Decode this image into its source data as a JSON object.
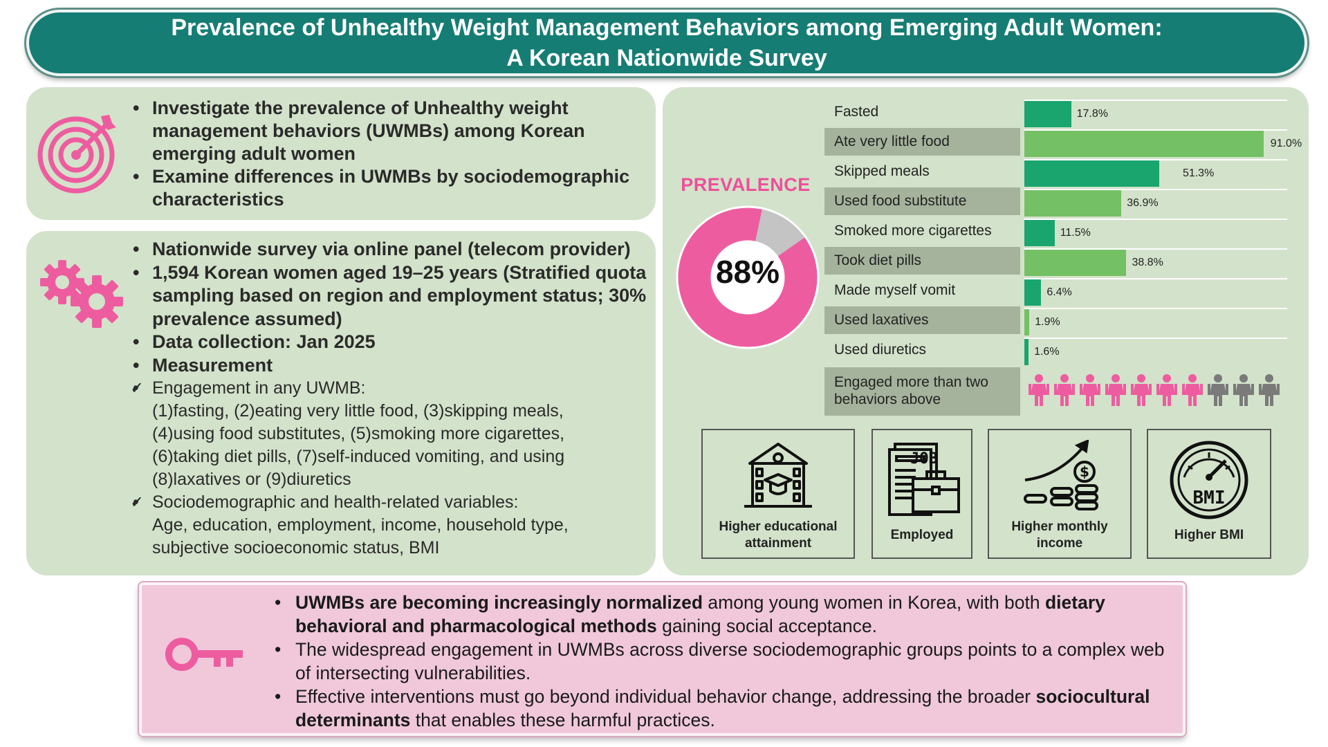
{
  "header": {
    "title_line1": "Prevalence of Unhealthy Weight Management Behaviors among Emerging Adult Women:",
    "title_line2": "A Korean Nationwide Survey"
  },
  "objectives": {
    "icon": "target-icon",
    "items": [
      "Investigate the prevalence of Unhealthy weight management behaviors (UWMBs) among Korean emerging adult women",
      "Examine differences in UWMBs by sociodemographic characteristics"
    ]
  },
  "methods": {
    "icon": "gears-icon",
    "items": [
      "Nationwide survey via online panel (telecom provider)",
      "1,594 Korean women aged 19–25 years (Stratified quota sampling based on region and employment status; 30% prevalence assumed)",
      "Data collection: Jan 2025",
      "Measurement"
    ],
    "measurement": [
      {
        "heading": "Engagement in any UWMB:",
        "lines": [
          "(1)fasting, (2)eating very little food, (3)skipping meals,",
          "(4)using food substitutes, (5)smoking more cigarettes,",
          "(6)taking diet pills, (7)self-induced vomiting, and using",
          "(8)laxatives or (9)diuretics"
        ]
      },
      {
        "heading": "Sociodemographic and health-related variables:",
        "lines": [
          "Age, education, employment, income, household type,",
          "subjective socioeconomic status, BMI"
        ]
      }
    ],
    "check_mark": "✓"
  },
  "results": {
    "prevalence_label": "PREVALENCE",
    "prevalence_value": "88%",
    "prevalence_fraction": 0.88,
    "colors": {
      "pink": "#ee5ca0",
      "gray": "#c4c4c4",
      "dark_green": "#1aa56f",
      "light_green": "#74c064"
    },
    "behaviors": [
      {
        "label": "Fasted",
        "value": 17.8,
        "value_label": "17.8%",
        "shaded": false
      },
      {
        "label": "Ate very little food",
        "value": 91.0,
        "value_label": "91.0%",
        "shaded": true
      },
      {
        "label": "Skipped meals",
        "value": 51.3,
        "value_label": "51.3%",
        "shaded": false
      },
      {
        "label": "Used food substitute",
        "value": 36.9,
        "value_label": "36.9%",
        "shaded": true
      },
      {
        "label": "Smoked more cigarettes",
        "value": 11.5,
        "value_label": "11.5%",
        "shaded": false
      },
      {
        "label": "Took diet pills",
        "value": 38.8,
        "value_label": "38.8%",
        "shaded": true
      },
      {
        "label": "Made myself vomit",
        "value": 6.4,
        "value_label": "6.4%",
        "shaded": false
      },
      {
        "label": "Used laxatives",
        "value": 1.9,
        "value_label": "1.9%",
        "shaded": true
      },
      {
        "label": "Used diuretics",
        "value": 1.6,
        "value_label": "1.6%",
        "shaded": false
      }
    ],
    "multi_behavior": {
      "label": "Engaged more than two behaviors above",
      "highlighted_count": 7,
      "total_count": 10
    },
    "factors": [
      {
        "label_line1": "Higher educational",
        "label_line2": "attainment",
        "icon": "school-icon"
      },
      {
        "label_line1": "Employed",
        "label_line2": "",
        "icon": "job-briefcase-icon",
        "icon_text": "JOB"
      },
      {
        "label_line1": "Higher monthly",
        "label_line2": "income",
        "icon": "income-growth-icon",
        "icon_text": "$"
      },
      {
        "label_line1": "Higher BMI",
        "label_line2": "",
        "icon": "bmi-gauge-icon",
        "icon_text": "BMI"
      }
    ]
  },
  "conclusion": {
    "icon": "key-icon",
    "items": [
      {
        "parts": [
          {
            "text": "UWMBs are becoming increasingly normalized",
            "bold": true
          },
          {
            "text": " among young women in Korea, with both ",
            "bold": false
          },
          {
            "text": "dietary behavioral and pharmacological methods",
            "bold": true
          },
          {
            "text": " gaining social acceptance.",
            "bold": false
          }
        ]
      },
      {
        "parts": [
          {
            "text": "The widespread engagement in UWMBs across diverse sociodemographic groups points to a complex web of intersecting vulnerabilities.",
            "bold": false
          }
        ]
      },
      {
        "parts": [
          {
            "text": "Effective interventions must go beyond individual behavior change, addressing the broader ",
            "bold": false
          },
          {
            "text": "sociocultural determinants",
            "bold": true
          },
          {
            "text": " that enables these harmful practices.",
            "bold": false
          }
        ]
      }
    ]
  }
}
